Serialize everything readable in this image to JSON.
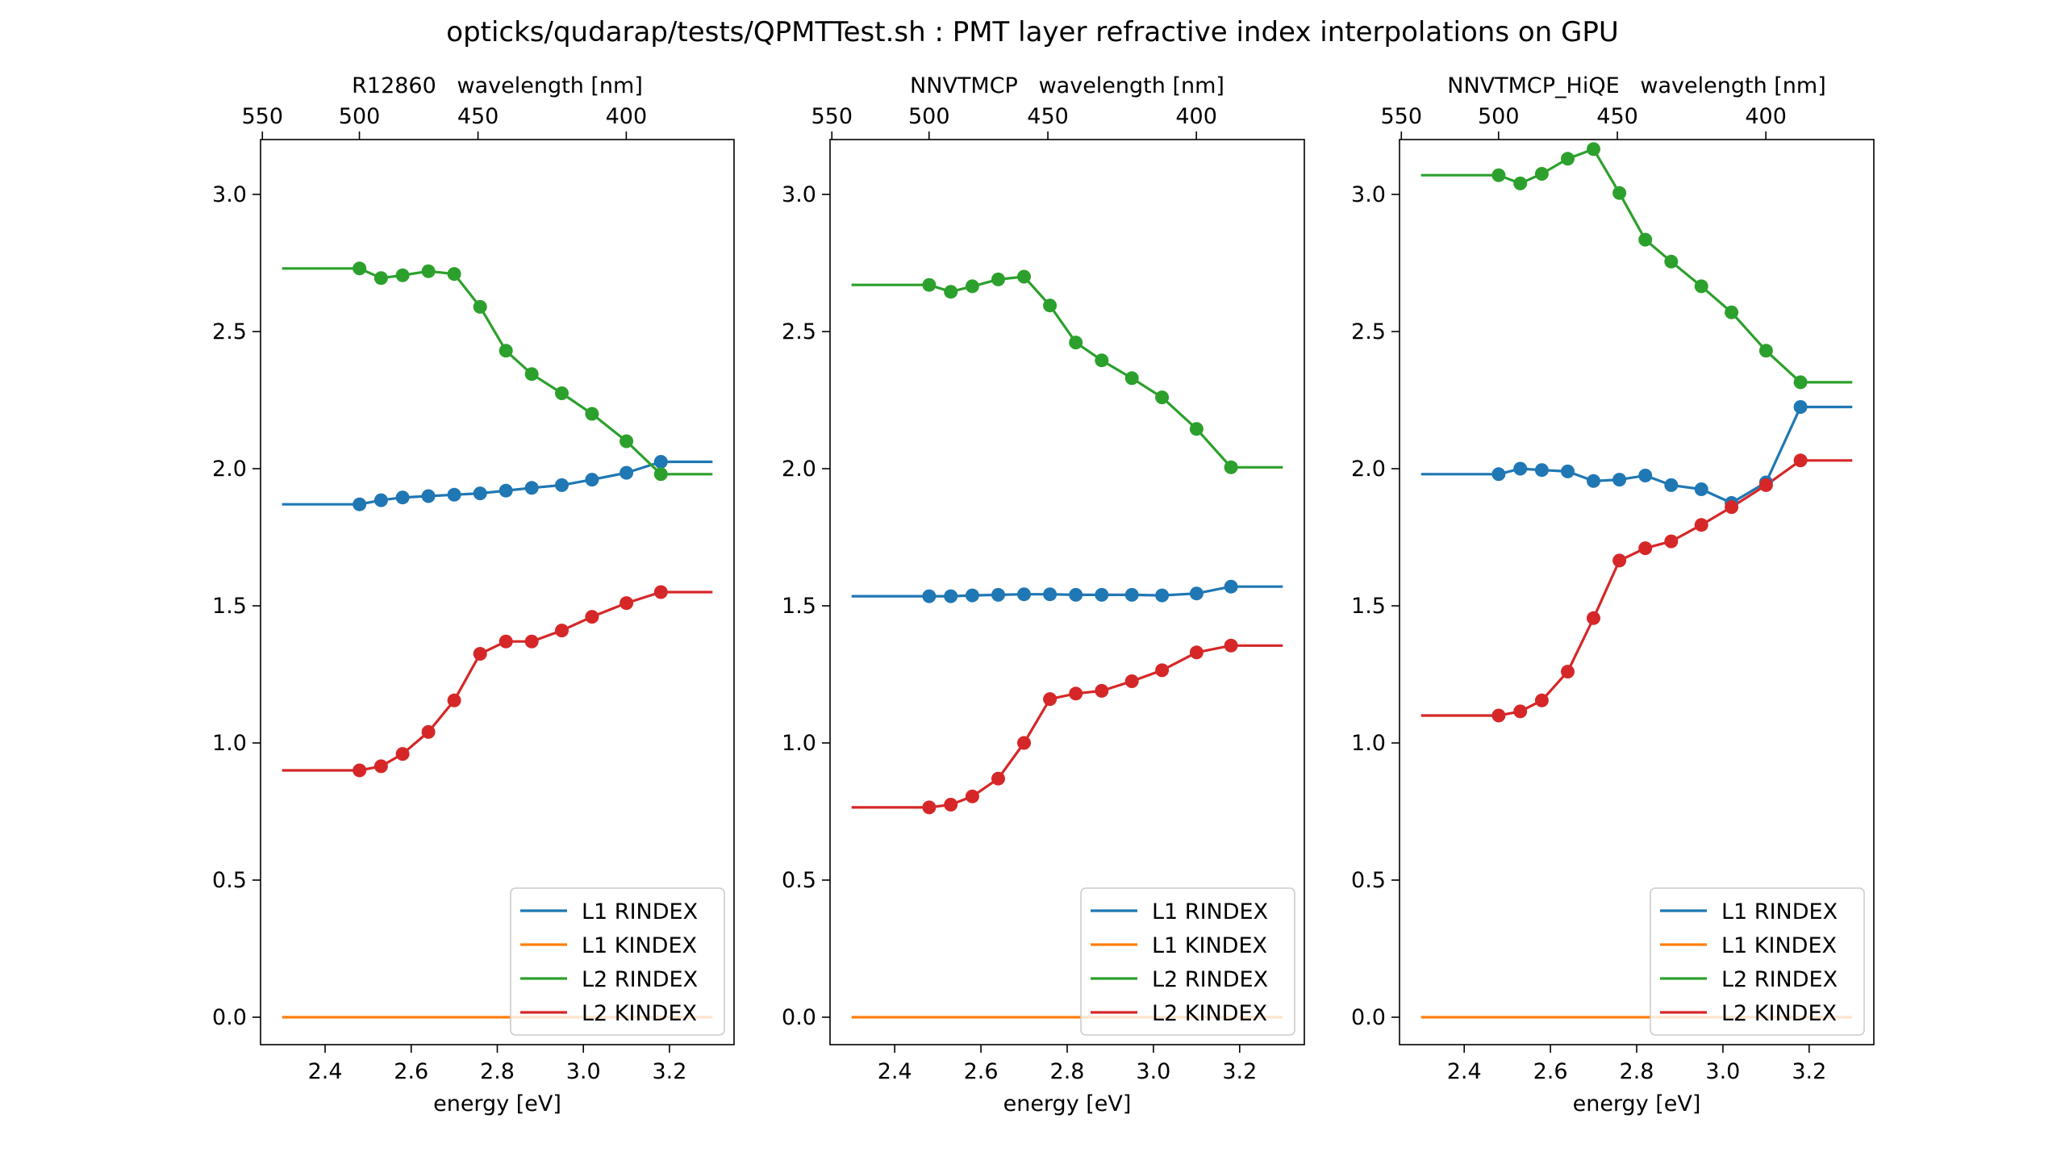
{
  "figure": {
    "title": "opticks/qudarap/tests/QPMTTest.sh : PMT layer refractive index interpolations on GPU"
  },
  "colors": {
    "L1 RINDEX": "#1f77b4",
    "L1 KINDEX": "#ff7f0e",
    "L2 RINDEX": "#2ca02c",
    "L2 KINDEX": "#d62728"
  },
  "chart_data": [
    {
      "type": "line",
      "title": "R12860   wavelength [nm]",
      "xlabel": "energy [eV]",
      "ylabel": "",
      "xlim": [
        2.25,
        3.35
      ],
      "ylim": [
        -0.1,
        3.2
      ],
      "x_ticks": [
        "2.4",
        "2.6",
        "2.8",
        "3.0",
        "3.2"
      ],
      "y_ticks": [
        "0.0",
        "0.5",
        "1.0",
        "1.5",
        "2.0",
        "2.5",
        "3.0"
      ],
      "top_axis": {
        "label": "wavelength [nm]",
        "ticks": [
          "550",
          "500",
          "450",
          "400"
        ]
      },
      "legend": {
        "position": "lower-right",
        "entries": [
          "L1 RINDEX",
          "L1 KINDEX",
          "L2 RINDEX",
          "L2 KINDEX"
        ]
      },
      "markers_x": [
        2.48,
        2.53,
        2.58,
        2.64,
        2.7,
        2.76,
        2.82,
        2.88,
        2.95,
        3.02,
        3.1,
        3.18
      ],
      "series": [
        {
          "name": "L1 RINDEX",
          "line_x": [
            2.3,
            2.48,
            2.53,
            2.58,
            2.64,
            2.7,
            2.76,
            2.82,
            2.88,
            2.95,
            3.02,
            3.1,
            3.18,
            3.3
          ],
          "line_y": [
            1.87,
            1.87,
            1.885,
            1.895,
            1.9,
            1.905,
            1.91,
            1.92,
            1.93,
            1.94,
            1.96,
            1.985,
            2.025,
            2.025
          ],
          "markers_y": [
            1.87,
            1.885,
            1.895,
            1.9,
            1.905,
            1.91,
            1.92,
            1.93,
            1.94,
            1.96,
            1.985,
            2.025
          ]
        },
        {
          "name": "L1 KINDEX",
          "line_x": [
            2.3,
            3.3
          ],
          "line_y": [
            0.0,
            0.0
          ],
          "markers_y": []
        },
        {
          "name": "L2 RINDEX",
          "line_x": [
            2.3,
            2.48,
            2.53,
            2.58,
            2.64,
            2.7,
            2.76,
            2.82,
            2.88,
            2.95,
            3.02,
            3.1,
            3.18,
            3.3
          ],
          "line_y": [
            2.73,
            2.73,
            2.695,
            2.705,
            2.72,
            2.71,
            2.59,
            2.43,
            2.345,
            2.275,
            2.2,
            2.1,
            1.98,
            1.98
          ],
          "markers_y": [
            2.73,
            2.695,
            2.705,
            2.72,
            2.71,
            2.59,
            2.43,
            2.345,
            2.275,
            2.2,
            2.1,
            1.98
          ]
        },
        {
          "name": "L2 KINDEX",
          "line_x": [
            2.3,
            2.48,
            2.53,
            2.58,
            2.64,
            2.7,
            2.76,
            2.82,
            2.88,
            2.95,
            3.02,
            3.1,
            3.18,
            3.3
          ],
          "line_y": [
            0.9,
            0.9,
            0.915,
            0.96,
            1.04,
            1.155,
            1.325,
            1.37,
            1.37,
            1.41,
            1.46,
            1.51,
            1.55,
            1.55
          ],
          "markers_y": [
            0.9,
            0.915,
            0.96,
            1.04,
            1.155,
            1.325,
            1.37,
            1.37,
            1.41,
            1.46,
            1.51,
            1.55
          ]
        }
      ]
    },
    {
      "type": "line",
      "title": "NNVTMCP   wavelength [nm]",
      "xlabel": "energy [eV]",
      "ylabel": "",
      "xlim": [
        2.25,
        3.35
      ],
      "ylim": [
        -0.1,
        3.2
      ],
      "x_ticks": [
        "2.4",
        "2.6",
        "2.8",
        "3.0",
        "3.2"
      ],
      "y_ticks": [
        "0.0",
        "0.5",
        "1.0",
        "1.5",
        "2.0",
        "2.5",
        "3.0"
      ],
      "top_axis": {
        "label": "wavelength [nm]",
        "ticks": [
          "550",
          "500",
          "450",
          "400"
        ]
      },
      "legend": {
        "position": "lower-right",
        "entries": [
          "L1 RINDEX",
          "L1 KINDEX",
          "L2 RINDEX",
          "L2 KINDEX"
        ]
      },
      "markers_x": [
        2.48,
        2.53,
        2.58,
        2.64,
        2.7,
        2.76,
        2.82,
        2.88,
        2.95,
        3.02,
        3.1,
        3.18
      ],
      "series": [
        {
          "name": "L1 RINDEX",
          "line_x": [
            2.3,
            2.48,
            2.53,
            2.58,
            2.64,
            2.7,
            2.76,
            2.82,
            2.88,
            2.95,
            3.02,
            3.1,
            3.18,
            3.3
          ],
          "line_y": [
            1.535,
            1.535,
            1.535,
            1.538,
            1.54,
            1.542,
            1.542,
            1.54,
            1.54,
            1.54,
            1.538,
            1.545,
            1.57,
            1.57
          ],
          "markers_y": [
            1.535,
            1.535,
            1.538,
            1.54,
            1.542,
            1.542,
            1.54,
            1.54,
            1.54,
            1.538,
            1.545,
            1.57
          ]
        },
        {
          "name": "L1 KINDEX",
          "line_x": [
            2.3,
            3.3
          ],
          "line_y": [
            0.0,
            0.0
          ],
          "markers_y": []
        },
        {
          "name": "L2 RINDEX",
          "line_x": [
            2.3,
            2.48,
            2.53,
            2.58,
            2.64,
            2.7,
            2.76,
            2.82,
            2.88,
            2.95,
            3.02,
            3.1,
            3.18,
            3.3
          ],
          "line_y": [
            2.67,
            2.67,
            2.645,
            2.665,
            2.69,
            2.7,
            2.595,
            2.46,
            2.395,
            2.33,
            2.26,
            2.145,
            2.005,
            2.005
          ],
          "markers_y": [
            2.67,
            2.645,
            2.665,
            2.69,
            2.7,
            2.595,
            2.46,
            2.395,
            2.33,
            2.26,
            2.145,
            2.005
          ]
        },
        {
          "name": "L2 KINDEX",
          "line_x": [
            2.3,
            2.48,
            2.53,
            2.58,
            2.64,
            2.7,
            2.76,
            2.82,
            2.88,
            2.95,
            3.02,
            3.1,
            3.18,
            3.3
          ],
          "line_y": [
            0.765,
            0.765,
            0.775,
            0.805,
            0.87,
            1.0,
            1.16,
            1.18,
            1.19,
            1.225,
            1.265,
            1.33,
            1.355,
            1.355
          ],
          "markers_y": [
            0.765,
            0.775,
            0.805,
            0.87,
            1.0,
            1.16,
            1.18,
            1.19,
            1.225,
            1.265,
            1.33,
            1.355
          ]
        }
      ]
    },
    {
      "type": "line",
      "title": "NNVTMCP_HiQE   wavelength [nm]",
      "xlabel": "energy [eV]",
      "ylabel": "",
      "xlim": [
        2.25,
        3.35
      ],
      "ylim": [
        -0.1,
        3.2
      ],
      "x_ticks": [
        "2.4",
        "2.6",
        "2.8",
        "3.0",
        "3.2"
      ],
      "y_ticks": [
        "0.0",
        "0.5",
        "1.0",
        "1.5",
        "2.0",
        "2.5",
        "3.0"
      ],
      "top_axis": {
        "label": "wavelength [nm]",
        "ticks": [
          "550",
          "500",
          "450",
          "400"
        ]
      },
      "legend": {
        "position": "lower-right",
        "entries": [
          "L1 RINDEX",
          "L1 KINDEX",
          "L2 RINDEX",
          "L2 KINDEX"
        ]
      },
      "markers_x": [
        2.48,
        2.53,
        2.58,
        2.64,
        2.7,
        2.76,
        2.82,
        2.88,
        2.95,
        3.02,
        3.1,
        3.18
      ],
      "series": [
        {
          "name": "L1 RINDEX",
          "line_x": [
            2.3,
            2.48,
            2.53,
            2.58,
            2.64,
            2.7,
            2.76,
            2.82,
            2.88,
            2.95,
            3.02,
            3.1,
            3.18,
            3.3
          ],
          "line_y": [
            1.98,
            1.98,
            2.0,
            1.995,
            1.99,
            1.955,
            1.96,
            1.975,
            1.94,
            1.925,
            1.875,
            1.95,
            2.225,
            2.225
          ],
          "markers_y": [
            1.98,
            2.0,
            1.995,
            1.99,
            1.955,
            1.96,
            1.975,
            1.94,
            1.925,
            1.875,
            1.95,
            2.225
          ]
        },
        {
          "name": "L1 KINDEX",
          "line_x": [
            2.3,
            3.3
          ],
          "line_y": [
            0.0,
            0.0
          ],
          "markers_y": []
        },
        {
          "name": "L2 RINDEX",
          "line_x": [
            2.3,
            2.48,
            2.53,
            2.58,
            2.64,
            2.7,
            2.76,
            2.82,
            2.88,
            2.95,
            3.02,
            3.1,
            3.18,
            3.3
          ],
          "line_y": [
            3.07,
            3.07,
            3.04,
            3.075,
            3.13,
            3.165,
            3.005,
            2.835,
            2.755,
            2.665,
            2.57,
            2.43,
            2.315,
            2.315
          ],
          "markers_y": [
            3.07,
            3.04,
            3.075,
            3.13,
            3.165,
            3.005,
            2.835,
            2.755,
            2.665,
            2.57,
            2.43,
            2.315
          ]
        },
        {
          "name": "L2 KINDEX",
          "line_x": [
            2.3,
            2.48,
            2.53,
            2.58,
            2.64,
            2.7,
            2.76,
            2.82,
            2.88,
            2.95,
            3.02,
            3.1,
            3.18,
            3.3
          ],
          "line_y": [
            1.1,
            1.1,
            1.115,
            1.155,
            1.26,
            1.455,
            1.665,
            1.71,
            1.735,
            1.795,
            1.86,
            1.94,
            2.03,
            2.03
          ],
          "markers_y": [
            1.1,
            1.115,
            1.155,
            1.26,
            1.455,
            1.665,
            1.71,
            1.735,
            1.795,
            1.86,
            1.94,
            2.03
          ]
        }
      ]
    }
  ]
}
